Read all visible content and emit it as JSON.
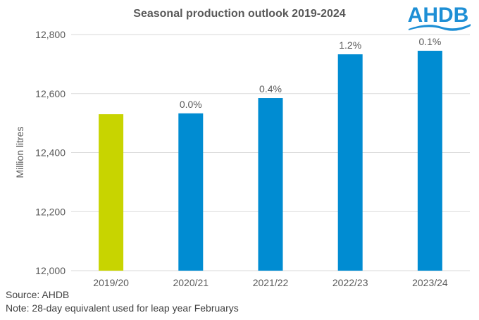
{
  "logo_text": "AHDB",
  "colors": {
    "baseline": "#C8D400",
    "forecast": "#008CD2",
    "grid": "#D9D9D9",
    "logo": "#1E8FD5"
  },
  "chart_data": {
    "type": "bar",
    "title": "Seasonal production outlook 2019-2024",
    "xlabel": "",
    "ylabel": "Million litres",
    "ylim": [
      12000,
      12800
    ],
    "yticks": [
      12000,
      12200,
      12400,
      12600,
      12800
    ],
    "ytick_labels": [
      "12,000",
      "12,200",
      "12,400",
      "12,600",
      "12,800"
    ],
    "grid": true,
    "categories": [
      "2019/20",
      "2020/21",
      "2021/22",
      "2022/23",
      "2023/24"
    ],
    "values": [
      12530,
      12533,
      12585,
      12733,
      12745
    ],
    "data_labels": [
      "",
      "0.0%",
      "0.4%",
      "1.2%",
      "0.1%"
    ],
    "bar_types": [
      "baseline",
      "forecast",
      "forecast",
      "forecast",
      "forecast"
    ]
  },
  "source": "Source: AHDB",
  "note": "Note: 28-day equivalent used for leap year Februarys"
}
